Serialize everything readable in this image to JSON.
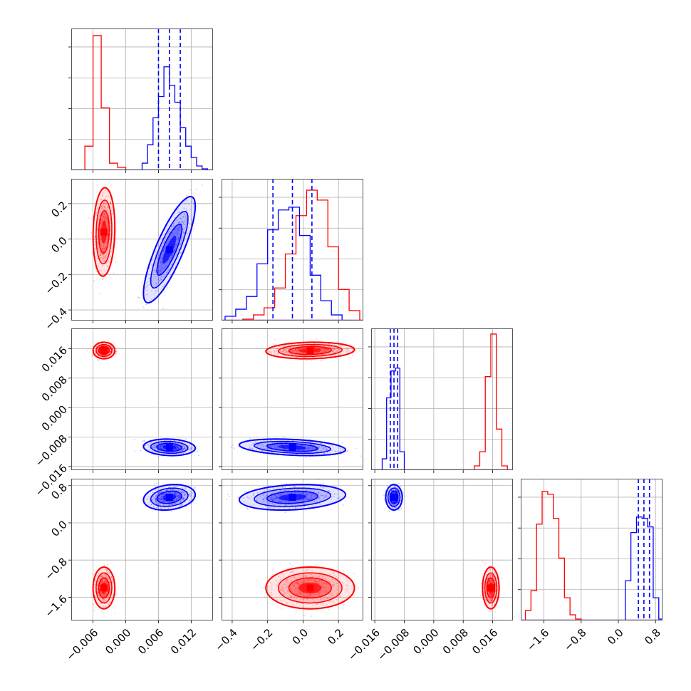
{
  "chart_data": {
    "type": "corner",
    "params": [
      {
        "range": [
          -0.01,
          0.016
        ],
        "ticks": [
          -0.006,
          0.0,
          0.006,
          0.012
        ],
        "tick_labels": [
          "−0.006",
          "0.000",
          "0.006",
          "0.012"
        ]
      },
      {
        "range": [
          -0.46,
          0.34
        ],
        "ticks": [
          -0.4,
          -0.2,
          0.0,
          0.2
        ],
        "tick_labels": [
          "−0.4",
          "−0.2",
          "0.0",
          "0.2"
        ]
      },
      {
        "range": [
          -0.017,
          0.0215
        ],
        "ticks": [
          -0.016,
          -0.008,
          0.0,
          0.008,
          0.016
        ],
        "tick_labels": [
          "−0.016",
          "−0.008",
          "0.000",
          "0.008",
          "0.016"
        ]
      },
      {
        "range": [
          -2.1,
          0.95
        ],
        "ticks": [
          -1.6,
          -0.8,
          0.0,
          0.8
        ],
        "tick_labels": [
          "−1.6",
          "−0.8",
          "0.0",
          "0.8"
        ]
      }
    ],
    "series": [
      {
        "color": "#ff0000",
        "means": [
          -0.004,
          0.04,
          0.0155,
          -1.4
        ],
        "stds": [
          0.0008,
          0.1,
          0.0009,
          0.18
        ],
        "correlations": {
          "1-0": 0.1,
          "2-0": 0.0,
          "2-1": 0.1,
          "3-0": 0.0,
          "3-1": 0.0,
          "3-2": 0.0
        },
        "hist": [
          {
            "edges": [
              -0.0075,
              -0.006,
              -0.0045,
              -0.003,
              -0.0015,
              0.0
            ],
            "counts": [
              0.17,
              0.95,
              0.44,
              0.05,
              0.02
            ]
          },
          {
            "edges": [
              -0.34,
              -0.28,
              -0.22,
              -0.16,
              -0.1,
              -0.04,
              0.02,
              0.08,
              0.14,
              0.2,
              0.26,
              0.32
            ],
            "counts": [
              0.01,
              0.04,
              0.09,
              0.23,
              0.47,
              0.74,
              0.92,
              0.85,
              0.52,
              0.22,
              0.07
            ]
          },
          {
            "edges": [
              0.011,
              0.0125,
              0.014,
              0.0155,
              0.017,
              0.0185,
              0.02
            ],
            "counts": [
              0.03,
              0.13,
              0.66,
              0.96,
              0.29,
              0.03
            ]
          },
          {
            "edges": [
              -2.0,
              -1.88,
              -1.76,
              -1.64,
              -1.52,
              -1.4,
              -1.28,
              -1.16,
              -1.04,
              -0.92,
              -0.8
            ],
            "counts": [
              0.07,
              0.21,
              0.68,
              0.91,
              0.89,
              0.72,
              0.44,
              0.16,
              0.04,
              0.01
            ]
          }
        ]
      },
      {
        "color": "#0000ff",
        "means": [
          0.008,
          -0.06,
          -0.0108,
          0.55
        ],
        "stds": [
          0.0019,
          0.12,
          0.0009,
          0.11
        ],
        "correlations": {
          "1-0": 0.82,
          "2-0": -0.1,
          "2-1": -0.3,
          "3-0": 0.2,
          "3-1": 0.2,
          "3-2": 0.0
        },
        "quantiles": [
          [
            0.006,
            0.008,
            0.01
          ],
          [
            -0.17,
            -0.06,
            0.05
          ],
          [
            -0.0118,
            -0.0108,
            -0.0098
          ],
          [
            0.43,
            0.55,
            0.67
          ]
        ],
        "hist": [
          {
            "edges": [
              0.003,
              0.004,
              0.005,
              0.006,
              0.007,
              0.008,
              0.009,
              0.01,
              0.011,
              0.012,
              0.013,
              0.014,
              0.015
            ],
            "counts": [
              0.05,
              0.18,
              0.37,
              0.52,
              0.73,
              0.6,
              0.48,
              0.3,
              0.17,
              0.09,
              0.03,
              0.01
            ]
          },
          {
            "edges": [
              -0.44,
              -0.38,
              -0.32,
              -0.26,
              -0.2,
              -0.14,
              -0.08,
              -0.02,
              0.04,
              0.1,
              0.16,
              0.22
            ],
            "counts": [
              0.03,
              0.08,
              0.17,
              0.4,
              0.64,
              0.78,
              0.8,
              0.6,
              0.32,
              0.14,
              0.04
            ]
          },
          {
            "edges": [
              -0.014,
              -0.0128,
              -0.0116,
              -0.0104,
              -0.0092,
              -0.008
            ],
            "counts": [
              0.08,
              0.51,
              0.7,
              0.72,
              0.13
            ]
          },
          {
            "edges": [
              0.15,
              0.27,
              0.39,
              0.51,
              0.63,
              0.75,
              0.87,
              0.99
            ],
            "counts": [
              0.28,
              0.62,
              0.73,
              0.72,
              0.66,
              0.16,
              0.01
            ]
          }
        ]
      }
    ]
  }
}
